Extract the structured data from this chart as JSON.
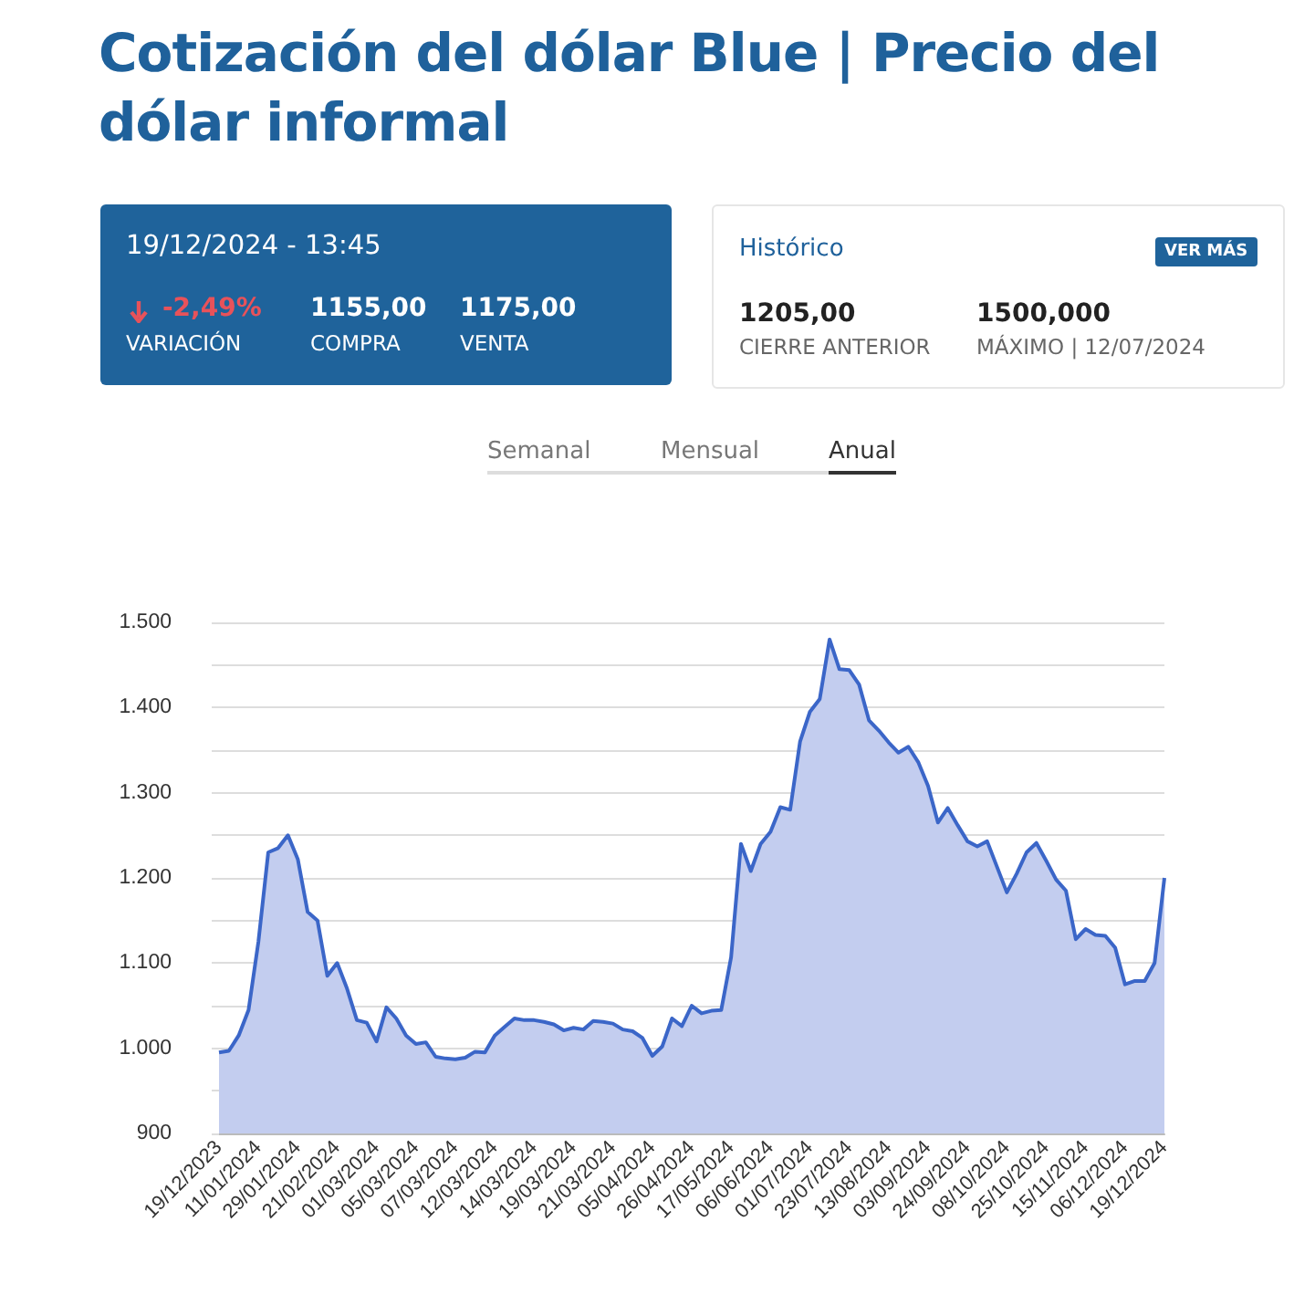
{
  "chart_data": {
    "type": "area",
    "title": "Cotización del dólar Blue | Precio del dólar informal",
    "annotations": [
      "19/12/2024 - 13:45",
      "-2,49%",
      "VARIACIÓN",
      "1155,00",
      "COMPRA",
      "1175,00",
      "VENTA",
      "Histórico",
      "VER MÁS",
      "1205,00",
      "CIERRE ANTERIOR",
      "1500,000",
      "MÁXIMO | 12/07/2024",
      "Semanal",
      "Mensual",
      "Anual"
    ],
    "categories": [
      "19/12/2023",
      null,
      null,
      null,
      "11/01/2024",
      null,
      null,
      null,
      "29/01/2024",
      null,
      null,
      null,
      "21/02/2024",
      null,
      null,
      null,
      "01/03/2024",
      null,
      null,
      null,
      "05/03/2024",
      null,
      null,
      null,
      "07/03/2024",
      null,
      null,
      null,
      "12/03/2024",
      null,
      null,
      null,
      "14/03/2024",
      null,
      null,
      null,
      "19/03/2024",
      null,
      null,
      null,
      "21/03/2024",
      null,
      null,
      null,
      "05/04/2024",
      null,
      null,
      null,
      "26/04/2024",
      null,
      null,
      null,
      "17/05/2024",
      null,
      null,
      null,
      "06/06/2024",
      null,
      null,
      null,
      "01/07/2024",
      null,
      null,
      null,
      "23/07/2024",
      null,
      null,
      null,
      "13/08/2024",
      null,
      null,
      null,
      "03/09/2024",
      null,
      null,
      null,
      "24/09/2024",
      null,
      null,
      null,
      "08/10/2024",
      null,
      null,
      null,
      "25/10/2024",
      null,
      null,
      null,
      "15/11/2024",
      null,
      null,
      null,
      "06/12/2024",
      null,
      null,
      null,
      "19/12/2024"
    ],
    "series": [
      {
        "color": "#3b66c8",
        "values": [
          995,
          997,
          1015,
          1045,
          1125,
          1230,
          1235,
          1250,
          1222,
          1160,
          1150,
          1085,
          1100,
          1070,
          1033,
          1030,
          1008,
          1048,
          1035,
          1015,
          1005,
          1007,
          990,
          988,
          987,
          989,
          996,
          995,
          1015,
          1025,
          1035,
          1033,
          1033,
          1031,
          1028,
          1021,
          1024,
          1022,
          1032,
          1031,
          1029,
          1022,
          1020,
          1012,
          991,
          1002,
          1035,
          1026,
          1050,
          1041,
          1044,
          1045,
          1107,
          1240,
          1208,
          1240,
          1254,
          1283,
          1280,
          1360,
          1395,
          1410,
          1480,
          1445,
          1444,
          1427,
          1385,
          1373,
          1359,
          1347,
          1354,
          1336,
          1308,
          1265,
          1282,
          1262,
          1243,
          1237,
          1243,
          1213,
          1183,
          1205,
          1230,
          1241,
          1220,
          1198,
          1185,
          1128,
          1140,
          1133,
          1132,
          1118,
          1075,
          1079,
          1079,
          1100,
          1200
        ]
      }
    ],
    "ylim": [
      900,
      1500
    ],
    "yticks": [
      {
        "value": 900,
        "label": "900"
      },
      {
        "value": 950,
        "label": null
      },
      {
        "value": 1000,
        "label": "1.000"
      },
      {
        "value": 1050,
        "label": null
      },
      {
        "value": 1100,
        "label": "1.100"
      },
      {
        "value": 1150,
        "label": null
      },
      {
        "value": 1200,
        "label": "1.200"
      },
      {
        "value": 1250,
        "label": null
      },
      {
        "value": 1300,
        "label": "1.300"
      },
      {
        "value": 1350,
        "label": null
      },
      {
        "value": 1400,
        "label": "1.400"
      },
      {
        "value": 1450,
        "label": null
      },
      {
        "value": 1500,
        "label": "1.500"
      }
    ],
    "grid": "y",
    "marker": "none",
    "line_style": "solid"
  }
}
